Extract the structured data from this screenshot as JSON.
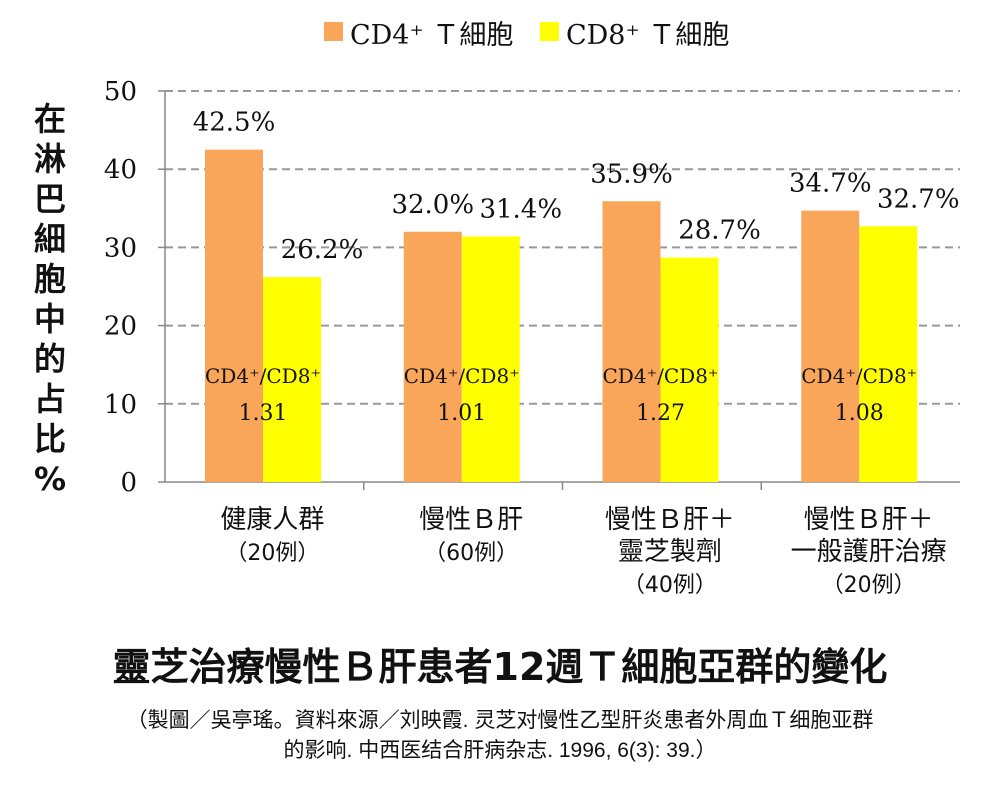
{
  "chart_data": {
    "type": "bar",
    "title": "靈芝治療慢性Ｂ肝患者12週Ｔ細胞亞群的變化",
    "caption_lines": [
      "（製圖／吳亭瑤。資料來源／刘映霞. 灵芝对慢性乙型肝炎患者外周血Ｔ细胞亚群",
      "的影响. 中西医结合肝病杂志. 1996, 6(3): 39.）"
    ],
    "ylabel": "在淋巴細胞中的占比%",
    "xlabel": "",
    "ylim": [
      0,
      50
    ],
    "yticks": [
      0,
      10,
      20,
      30,
      40,
      50
    ],
    "grid": true,
    "legend_position": "top",
    "categories": [
      [
        "健康人群",
        "（20例）"
      ],
      [
        "慢性Ｂ肝",
        "（60例）"
      ],
      [
        "慢性Ｂ肝＋",
        "靈芝製劑",
        "（40例）"
      ],
      [
        "慢性Ｂ肝＋",
        "一般護肝治療",
        "（20例）"
      ]
    ],
    "series": [
      {
        "name": "CD4⁺ Ｔ細胞",
        "color": "#f9a55a",
        "values": [
          42.5,
          32.0,
          35.9,
          34.7
        ],
        "labels": [
          "42.5%",
          "32.0%",
          "35.9%",
          "34.7%"
        ]
      },
      {
        "name": "CD8⁺ Ｔ細胞",
        "color": "#ffff00",
        "values": [
          26.2,
          31.4,
          28.7,
          32.7
        ],
        "labels": [
          "26.2%",
          "31.4%",
          "28.7%",
          "32.7%"
        ]
      }
    ],
    "ratio_label": "CD4⁺/CD8⁺",
    "ratios": [
      "1.31",
      "1.01",
      "1.27",
      "1.08"
    ]
  }
}
